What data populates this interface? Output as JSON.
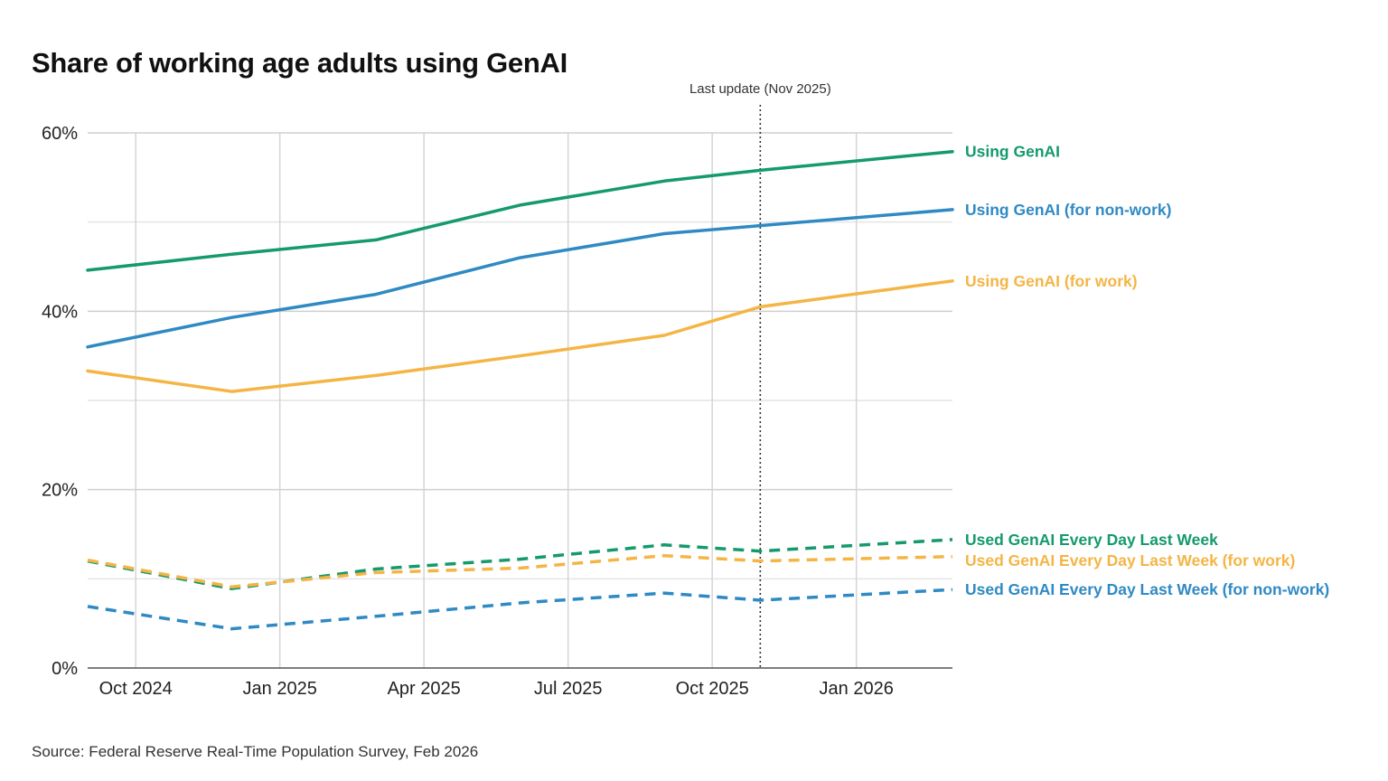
{
  "chart_data": {
    "type": "line",
    "title": "Share of working age adults using GenAI",
    "source": "Source: Federal Reserve Real-Time Population Survey, Feb 2026",
    "xlabel": "",
    "ylabel": "",
    "x_ticks": [
      "2024-10",
      "2025-01",
      "2025-04",
      "2025-07",
      "2025-10",
      "2026-01"
    ],
    "x_tick_labels": [
      "Oct 2024",
      "Jan 2025",
      "Apr 2025",
      "Jul 2025",
      "Oct 2025",
      "Jan 2026"
    ],
    "xlim": [
      "2024-09",
      "2026-03"
    ],
    "ylim": [
      0,
      60
    ],
    "y_ticks": [
      0,
      20,
      40,
      60
    ],
    "y_tick_labels": [
      "0%",
      "20%",
      "40%",
      "60%"
    ],
    "grid": true,
    "annotation": {
      "label": "Last update (Nov 2025)",
      "x": "2025-11"
    },
    "series": [
      {
        "name": "Using GenAI",
        "color": "#159a6c",
        "dashed": false,
        "x": [
          "2024-09",
          "2024-12",
          "2025-03",
          "2025-06",
          "2025-09",
          "2025-11",
          "2026-03"
        ],
        "values": [
          44.6,
          46.4,
          48.0,
          51.9,
          54.6,
          55.8,
          57.9
        ]
      },
      {
        "name": "Using GenAI (for non-work)",
        "color": "#2f8ac4",
        "dashed": false,
        "x": [
          "2024-09",
          "2024-12",
          "2025-03",
          "2025-06",
          "2025-09",
          "2025-11",
          "2026-03"
        ],
        "values": [
          36.0,
          39.3,
          41.9,
          46.0,
          48.7,
          49.6,
          51.4
        ]
      },
      {
        "name": "Using GenAI (for work)",
        "color": "#f4b545",
        "dashed": false,
        "x": [
          "2024-09",
          "2024-12",
          "2025-03",
          "2025-06",
          "2025-09",
          "2025-11",
          "2026-03"
        ],
        "values": [
          33.3,
          31.0,
          32.8,
          35.0,
          37.3,
          40.5,
          43.4
        ]
      },
      {
        "name": "Used GenAI Every Day Last Week",
        "color": "#159a6c",
        "dashed": true,
        "x": [
          "2024-09",
          "2024-12",
          "2025-03",
          "2025-06",
          "2025-09",
          "2025-11",
          "2026-03"
        ],
        "values": [
          12.0,
          8.9,
          11.1,
          12.2,
          13.8,
          13.1,
          14.4
        ]
      },
      {
        "name": "Used GenAI Every Day Last Week (for work)",
        "color": "#f4b545",
        "dashed": true,
        "x": [
          "2024-09",
          "2024-12",
          "2025-03",
          "2025-06",
          "2025-09",
          "2025-11",
          "2026-03"
        ],
        "values": [
          12.1,
          9.1,
          10.7,
          11.2,
          12.6,
          12.0,
          12.5
        ]
      },
      {
        "name": "Used GenAI Every Day Last Week (for non-work)",
        "color": "#2f8ac4",
        "dashed": true,
        "x": [
          "2024-09",
          "2024-12",
          "2025-03",
          "2025-06",
          "2025-09",
          "2025-11",
          "2026-03"
        ],
        "values": [
          6.9,
          4.4,
          5.8,
          7.3,
          8.4,
          7.6,
          8.8
        ]
      }
    ]
  }
}
